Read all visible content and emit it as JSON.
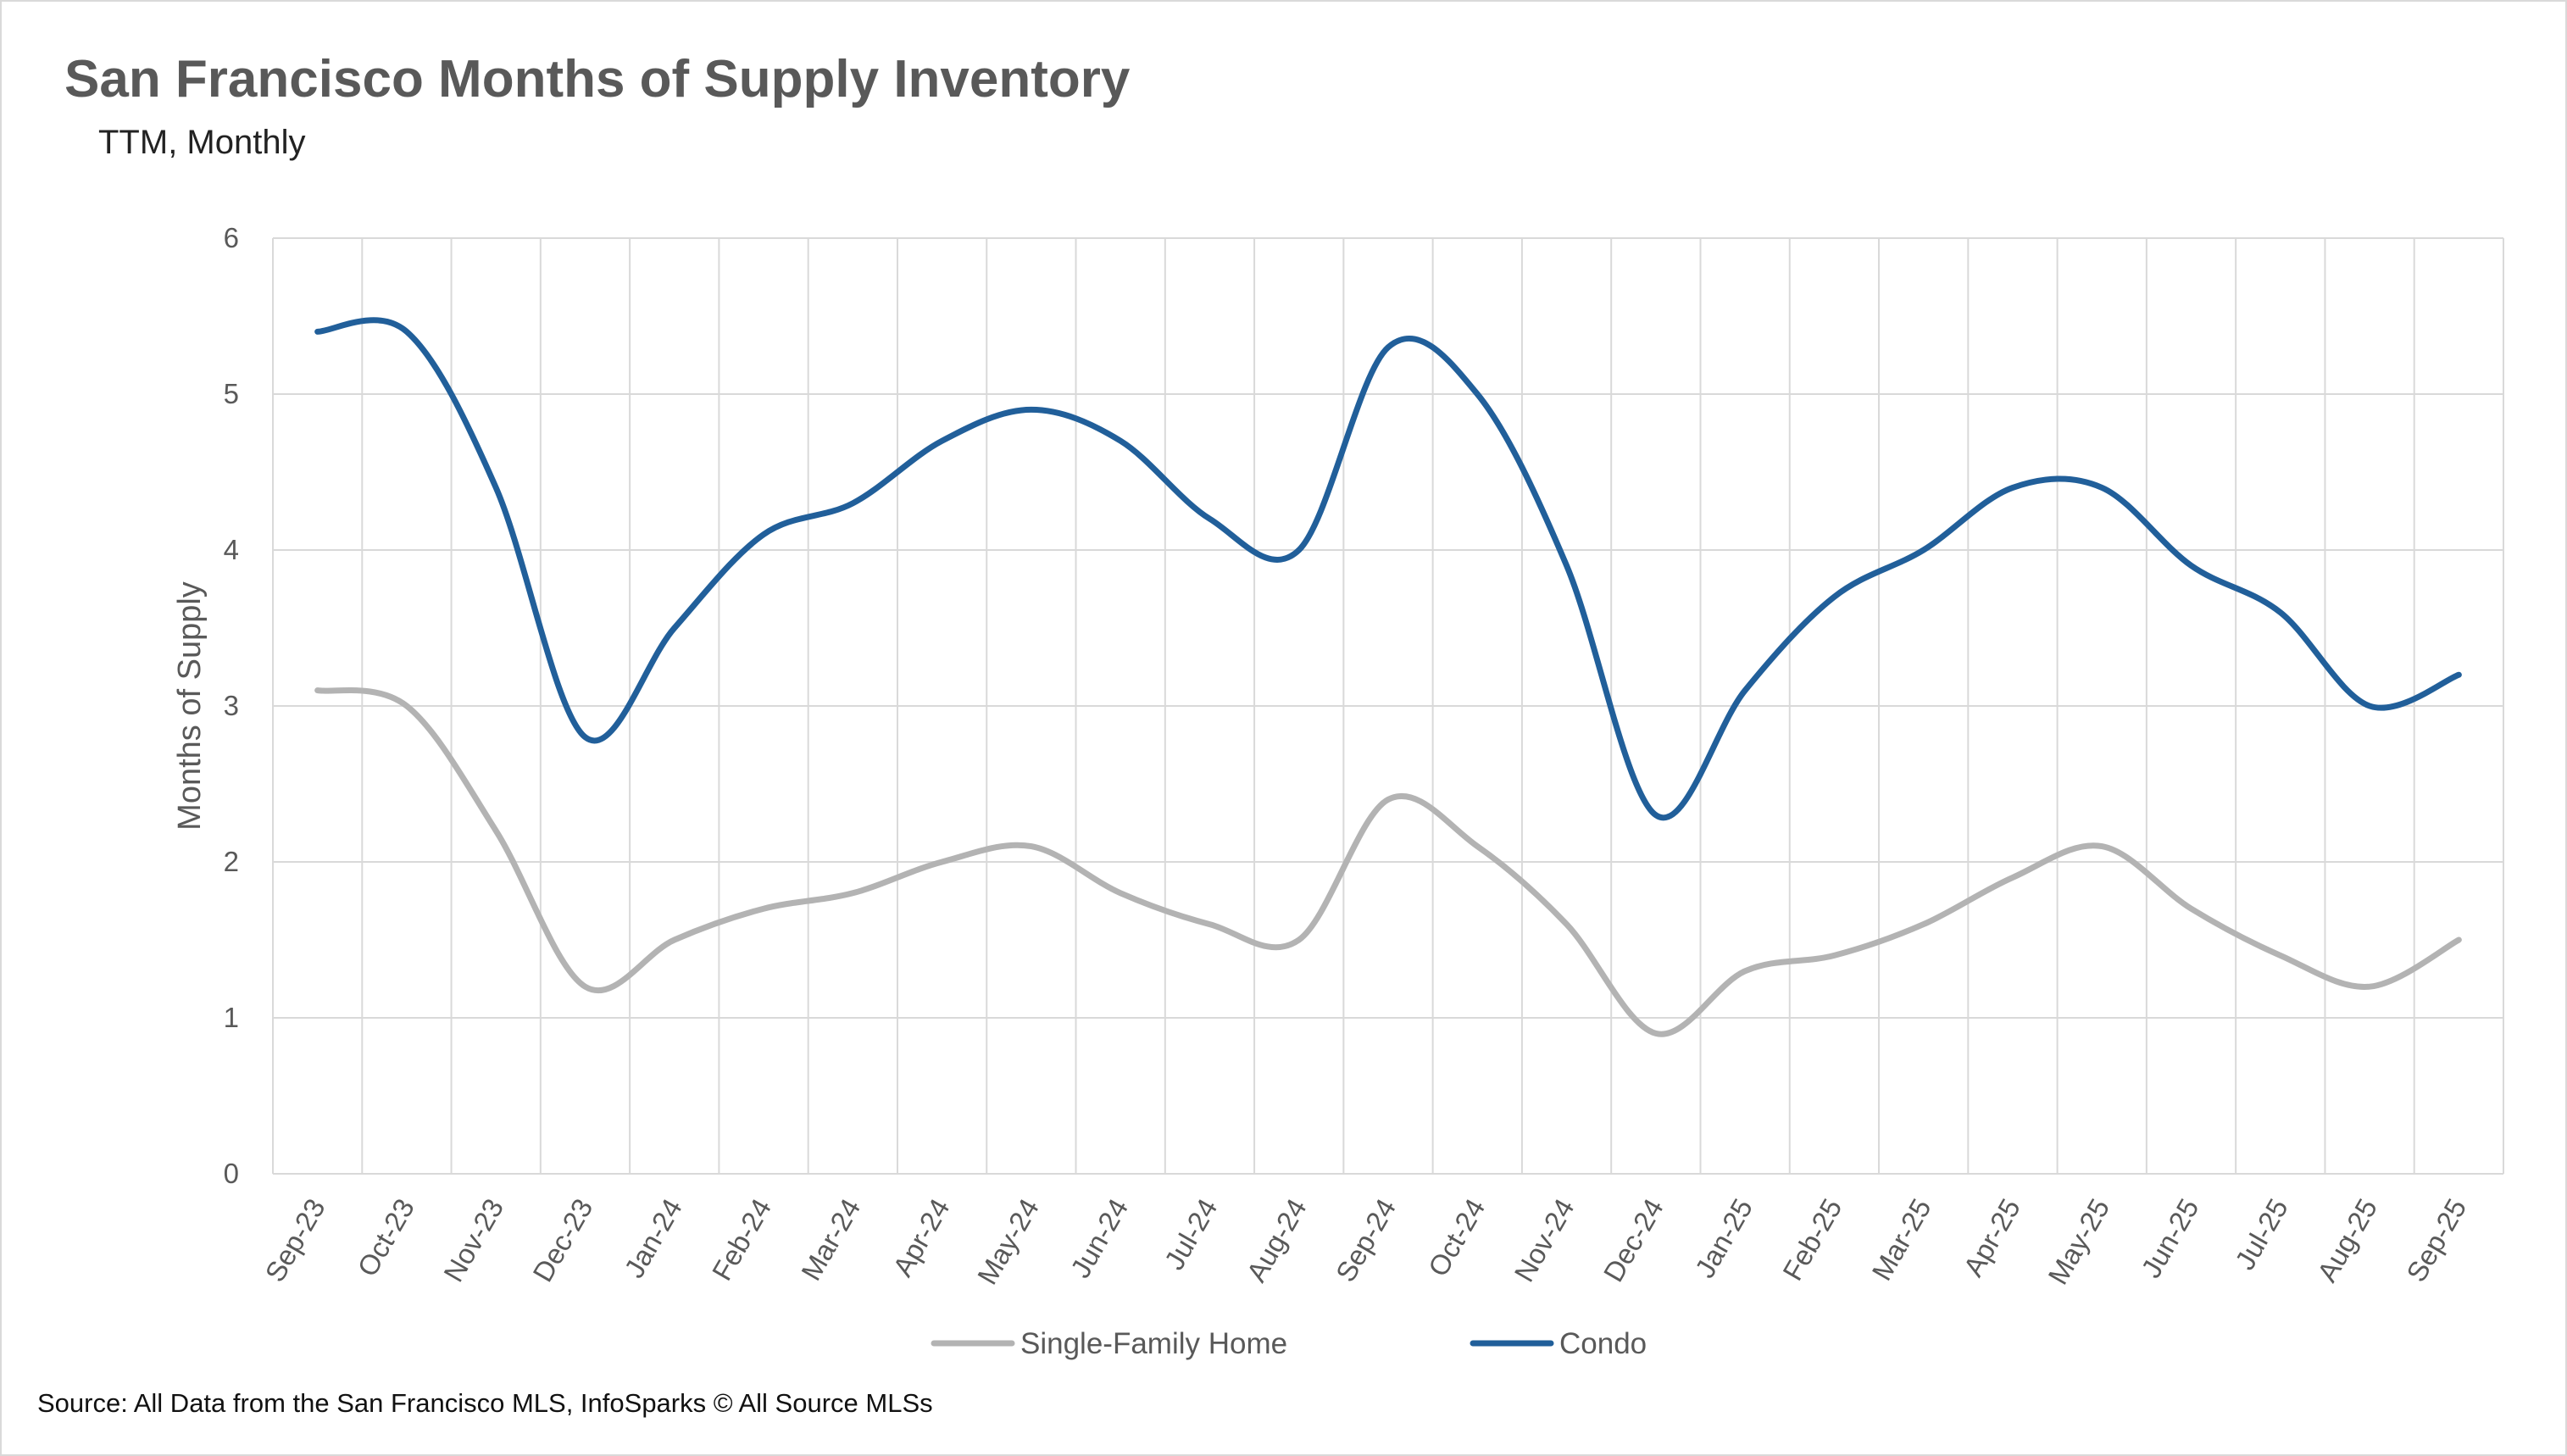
{
  "chart_data": {
    "type": "line",
    "title": "San Francisco Months of Supply Inventory",
    "subtitle": "TTM, Monthly",
    "ylabel": "Months of Supply",
    "ylim": [
      0,
      6
    ],
    "yticks": [
      0,
      1,
      2,
      3,
      4,
      5,
      6
    ],
    "grid": true,
    "legend_position": "bottom",
    "categories": [
      "Sep-23",
      "Oct-23",
      "Nov-23",
      "Dec-23",
      "Jan-24",
      "Feb-24",
      "Mar-24",
      "Apr-24",
      "May-24",
      "Jun-24",
      "Jul-24",
      "Aug-24",
      "Sep-24",
      "Oct-24",
      "Nov-24",
      "Dec-24",
      "Jan-25",
      "Feb-25",
      "Mar-25",
      "Apr-25",
      "May-25",
      "Jun-25",
      "Jul-25",
      "Aug-25",
      "Sep-25"
    ],
    "series": [
      {
        "name": "Single-Family Home",
        "color": "#b3b3b3",
        "values": [
          3.1,
          3.0,
          2.2,
          1.2,
          1.5,
          1.7,
          1.8,
          2.0,
          2.1,
          1.8,
          1.6,
          1.5,
          2.4,
          2.1,
          1.6,
          0.9,
          1.3,
          1.4,
          1.6,
          1.9,
          2.1,
          1.7,
          1.4,
          1.2,
          1.5
        ]
      },
      {
        "name": "Condo",
        "color": "#215f9a",
        "values": [
          5.4,
          5.4,
          4.4,
          2.8,
          3.5,
          4.1,
          4.3,
          4.7,
          4.9,
          4.7,
          4.2,
          4.0,
          5.3,
          5.0,
          3.9,
          2.3,
          3.1,
          3.7,
          4.0,
          4.4,
          4.4,
          3.9,
          3.6,
          3.0,
          3.2
        ]
      }
    ]
  },
  "source": "Source: All Data from the San Francisco MLS, InfoSparks © All Source MLSs"
}
